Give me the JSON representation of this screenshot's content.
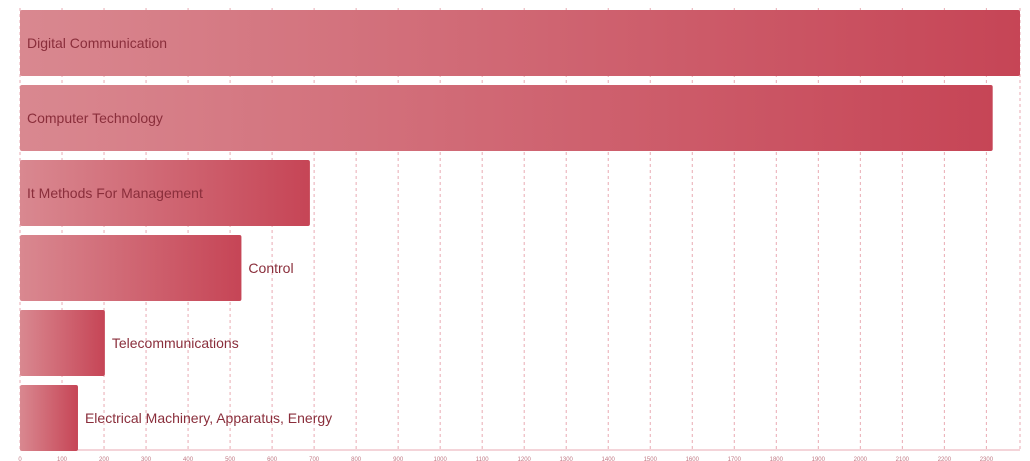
{
  "chart_data": {
    "type": "bar",
    "orientation": "horizontal",
    "categories": [
      "Digital Communication",
      "Computer Technology",
      "It Methods For Management",
      "Control",
      "Telecommunications",
      "Electrical Machinery, Apparatus, Energy"
    ],
    "values": [
      2380,
      2315,
      690,
      527,
      202,
      138
    ],
    "xlim": [
      0,
      2380
    ],
    "xticks": [
      0,
      100,
      200,
      300,
      400,
      500,
      600,
      700,
      800,
      900,
      1000,
      1100,
      1200,
      1300,
      1400,
      1500,
      1600,
      1700,
      1800,
      1900,
      2000,
      2100,
      2200,
      2300
    ],
    "grid": true,
    "title": "",
    "xlabel": "",
    "ylabel": "",
    "colors": {
      "bar_start": "#d98890",
      "bar_end": "#c64556",
      "grid": "#e9aab3",
      "label": "#8a2e3b"
    }
  }
}
